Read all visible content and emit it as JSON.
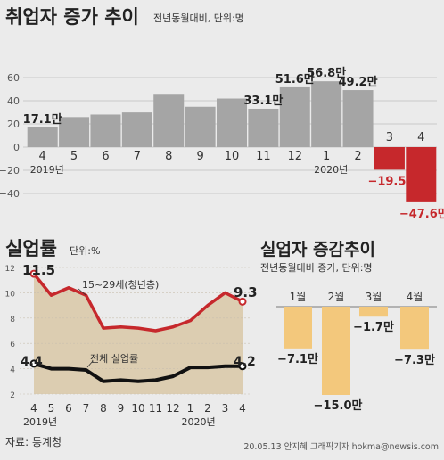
{
  "employment": {
    "title": "취업자 증가 추이",
    "subtitle": "전년동월대비, 단위:명",
    "chart_data": {
      "type": "bar",
      "categories": [
        "4",
        "5",
        "6",
        "7",
        "8",
        "9",
        "10",
        "11",
        "12",
        "1",
        "2",
        "3",
        "4"
      ],
      "values": [
        17.1,
        25.9,
        28.1,
        29.9,
        45.2,
        34.8,
        41.9,
        33.1,
        51.6,
        56.8,
        49.2,
        -19.5,
        -47.6
      ],
      "data_labels": [
        "17.1만",
        "",
        "",
        "",
        "",
        "",
        "",
        "33.1만",
        "51.6만",
        "56.8만",
        "49.2만",
        "−19.5만",
        "−47.6만"
      ],
      "year_labels": [
        "2019년",
        "2020년"
      ],
      "yticks": [
        "60",
        "40",
        "20",
        "0",
        "−20",
        "−40"
      ],
      "ylim": [
        -60,
        60
      ],
      "colors": {
        "positive": "#a5a5a5",
        "negative": "#c6282c"
      }
    }
  },
  "unemployment": {
    "title": "실업률",
    "unit": "단위:%",
    "chart_data": {
      "type": "line",
      "categories": [
        "4",
        "5",
        "6",
        "7",
        "8",
        "9",
        "10",
        "11",
        "12",
        "1",
        "2",
        "3",
        "4"
      ],
      "year_labels": [
        "2019년",
        "2020년"
      ],
      "yticks": [
        "12",
        "10",
        "8",
        "6",
        "4",
        "2"
      ],
      "ylim": [
        2,
        12
      ],
      "series": [
        {
          "name": "15~29세(청년층)",
          "values": [
            11.5,
            9.8,
            10.4,
            9.8,
            7.2,
            7.3,
            7.2,
            7.0,
            7.3,
            7.8,
            9.0,
            10.0,
            9.3
          ],
          "color": "#c6282c",
          "first_label": "11.5",
          "last_label": "9.3"
        },
        {
          "name": "전체 실업률",
          "values": [
            4.4,
            4.0,
            4.0,
            3.9,
            3.0,
            3.1,
            3.0,
            3.1,
            3.4,
            4.1,
            4.1,
            4.2,
            4.2
          ],
          "color": "#111111",
          "first_label": "4.4",
          "last_label": "4.2"
        }
      ],
      "colors": {
        "fill": "#dccdb1"
      }
    }
  },
  "unemployed": {
    "title": "실업자 증감추이",
    "subtitle": "전년동월대비 증가, 단위:명",
    "chart_data": {
      "type": "bar",
      "categories": [
        "1월",
        "2월",
        "3월",
        "4월"
      ],
      "values": [
        -7.1,
        -15.0,
        -1.7,
        -7.3
      ],
      "data_labels": [
        "−7.1만",
        "−15.0만",
        "−1.7만",
        "−7.3만"
      ],
      "color": "#f3c87c"
    }
  },
  "footer": {
    "source": "자료: 통계청",
    "credit": "20.05.13 안지혜 그래픽기자 hokma@newsis.com"
  }
}
